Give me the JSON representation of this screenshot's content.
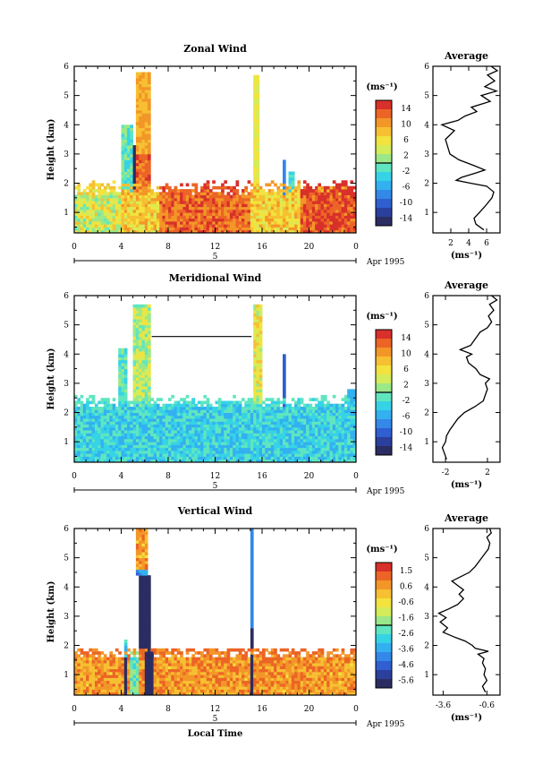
{
  "chart_data": [
    {
      "type": "heatmap",
      "title": "Zonal Wind",
      "ylabel": "Height (km)",
      "xlim": [
        0,
        24
      ],
      "ylim": [
        0.3,
        6
      ],
      "x_ticks": [
        "0",
        "4",
        "8",
        "12",
        "16",
        "20",
        "0"
      ],
      "y_ticks": [
        "1",
        "2",
        "3",
        "4",
        "5",
        "6"
      ],
      "date_axis": {
        "label": "5",
        "date_label": "Apr 1995"
      },
      "colorbar": {
        "unit": "(ms⁻¹)",
        "ticks": [
          "14",
          "10",
          "6",
          "2",
          "-2",
          "-6",
          "-10",
          "-14"
        ],
        "vmin": -14,
        "vmax": 14
      },
      "average": {
        "title": "Average",
        "xlabel": "(ms⁻¹)",
        "x_ticks": [
          "2",
          "4",
          "6"
        ],
        "xlim": [
          0,
          7.5
        ],
        "profile": [
          [
            5.7,
            0.4
          ],
          [
            4.8,
            0.6
          ],
          [
            4.6,
            0.8
          ],
          [
            5.2,
            1.0
          ],
          [
            5.8,
            1.2
          ],
          [
            6.6,
            1.5
          ],
          [
            6.8,
            1.7
          ],
          [
            6.0,
            1.9
          ],
          [
            4.2,
            2.0
          ],
          [
            2.6,
            2.1
          ],
          [
            3.2,
            2.2
          ],
          [
            4.8,
            2.35
          ],
          [
            5.8,
            2.45
          ],
          [
            4.6,
            2.6
          ],
          [
            2.9,
            2.8
          ],
          [
            1.9,
            3.0
          ],
          [
            1.7,
            3.2
          ],
          [
            1.4,
            3.5
          ],
          [
            2.4,
            3.8
          ],
          [
            1.0,
            4.0
          ],
          [
            2.8,
            4.15
          ],
          [
            3.6,
            4.3
          ],
          [
            4.9,
            4.45
          ],
          [
            4.3,
            4.6
          ],
          [
            6.4,
            4.8
          ],
          [
            5.4,
            5.0
          ],
          [
            7.1,
            5.15
          ],
          [
            5.8,
            5.3
          ],
          [
            6.9,
            5.5
          ],
          [
            6.1,
            5.7
          ],
          [
            7.2,
            5.85
          ],
          [
            6.5,
            6.0
          ]
        ]
      },
      "field": {
        "kind": "zonal"
      }
    },
    {
      "type": "heatmap",
      "title": "Meridional Wind",
      "ylabel": "Height (km)",
      "xlim": [
        0,
        24
      ],
      "ylim": [
        0.3,
        6
      ],
      "x_ticks": [
        "0",
        "4",
        "8",
        "12",
        "16",
        "20",
        "0"
      ],
      "y_ticks": [
        "1",
        "2",
        "3",
        "4",
        "5",
        "6"
      ],
      "date_axis": {
        "label": "5",
        "date_label": "Apr 1995"
      },
      "colorbar": {
        "unit": "(ms⁻¹)",
        "ticks": [
          "14",
          "10",
          "6",
          "2",
          "-2",
          "-6",
          "-10",
          "-14"
        ],
        "vmin": -14,
        "vmax": 14
      },
      "average": {
        "title": "Average",
        "xlabel": "(ms⁻¹)",
        "x_ticks": [
          "-2",
          "2"
        ],
        "xlim": [
          -3.2,
          3.2
        ],
        "profile": [
          [
            -1.9,
            0.4
          ],
          [
            -2.1,
            0.6
          ],
          [
            -2.3,
            0.8
          ],
          [
            -2.0,
            1.0
          ],
          [
            -1.9,
            1.2
          ],
          [
            -1.6,
            1.4
          ],
          [
            -1.2,
            1.6
          ],
          [
            -0.8,
            1.8
          ],
          [
            -0.2,
            2.0
          ],
          [
            0.8,
            2.2
          ],
          [
            1.6,
            2.4
          ],
          [
            1.8,
            2.6
          ],
          [
            2.0,
            2.8
          ],
          [
            1.8,
            3.0
          ],
          [
            2.2,
            3.15
          ],
          [
            1.3,
            3.3
          ],
          [
            0.9,
            3.5
          ],
          [
            0.2,
            3.7
          ],
          [
            0.0,
            3.9
          ],
          [
            0.5,
            4.0
          ],
          [
            -0.6,
            4.15
          ],
          [
            0.4,
            4.3
          ],
          [
            0.8,
            4.5
          ],
          [
            1.0,
            4.6
          ],
          [
            1.3,
            4.75
          ],
          [
            2.0,
            4.9
          ],
          [
            2.4,
            5.1
          ],
          [
            2.1,
            5.3
          ],
          [
            2.6,
            5.5
          ],
          [
            2.2,
            5.7
          ],
          [
            2.9,
            5.85
          ],
          [
            2.4,
            6.0
          ]
        ]
      },
      "field": {
        "kind": "meridional"
      }
    },
    {
      "type": "heatmap",
      "title": "Vertical Wind",
      "ylabel": "Height (km)",
      "xlabel": "Local Time",
      "xlim": [
        0,
        24
      ],
      "ylim": [
        0.3,
        6
      ],
      "x_ticks": [
        "0",
        "4",
        "8",
        "12",
        "16",
        "20",
        "0"
      ],
      "y_ticks": [
        "1",
        "2",
        "3",
        "4",
        "5",
        "6"
      ],
      "date_axis": {
        "label": "5",
        "date_label": "Apr 1995"
      },
      "colorbar": {
        "unit": "(ms⁻¹)",
        "ticks": [
          "1.5",
          "0.6",
          "-0.6",
          "-1.6",
          "-2.6",
          "-3.6",
          "-4.6",
          "-5.6"
        ],
        "vmin": -6.0,
        "vmax": 2.0
      },
      "average": {
        "title": "Average",
        "xlabel": "(ms⁻¹)",
        "x_ticks": [
          "-3.6",
          "-0.6"
        ],
        "xlim": [
          -4.3,
          0.3
        ],
        "profile": [
          [
            -0.7,
            0.4
          ],
          [
            -0.9,
            0.6
          ],
          [
            -0.6,
            0.8
          ],
          [
            -0.8,
            1.0
          ],
          [
            -0.7,
            1.2
          ],
          [
            -0.9,
            1.4
          ],
          [
            -0.8,
            1.55
          ],
          [
            -1.2,
            1.7
          ],
          [
            -0.5,
            1.8
          ],
          [
            -1.4,
            1.9
          ],
          [
            -1.6,
            2.0
          ],
          [
            -2.1,
            2.15
          ],
          [
            -2.9,
            2.3
          ],
          [
            -3.6,
            2.45
          ],
          [
            -3.3,
            2.6
          ],
          [
            -3.8,
            2.8
          ],
          [
            -3.4,
            2.95
          ],
          [
            -3.9,
            3.1
          ],
          [
            -3.2,
            3.25
          ],
          [
            -2.6,
            3.4
          ],
          [
            -2.2,
            3.6
          ],
          [
            -2.5,
            3.75
          ],
          [
            -2.2,
            3.9
          ],
          [
            -2.6,
            4.05
          ],
          [
            -3.0,
            4.2
          ],
          [
            -2.4,
            4.35
          ],
          [
            -1.8,
            4.5
          ],
          [
            -1.4,
            4.7
          ],
          [
            -1.1,
            4.9
          ],
          [
            -0.8,
            5.1
          ],
          [
            -0.5,
            5.3
          ],
          [
            -0.4,
            5.5
          ],
          [
            -0.6,
            5.7
          ],
          [
            -0.3,
            5.85
          ],
          [
            -0.4,
            6.0
          ]
        ]
      },
      "field": {
        "kind": "vertical"
      }
    }
  ],
  "colormap": [
    "#2b2d62",
    "#2b3f9c",
    "#2f5fd0",
    "#3388e8",
    "#33b0f0",
    "#36d3e6",
    "#5fe6c0",
    "#9ae887",
    "#d4ec5a",
    "#f2e33e",
    "#f6c032",
    "#f39628",
    "#ec6426",
    "#d8302a"
  ]
}
